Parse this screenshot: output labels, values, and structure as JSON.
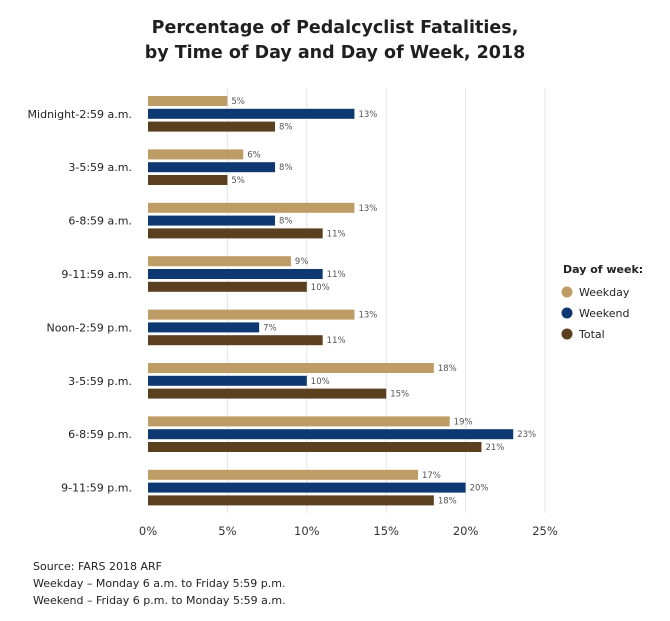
{
  "title_lines": [
    "Percentage of Pedalcyclist Fatalities,",
    "by Time of Day and Day of Week, 2018"
  ],
  "colors": {
    "Weekday": "#bd9c66",
    "Weekend": "#0e3872",
    "Total": "#5b4020",
    "grid": "#e4e4e4"
  },
  "chart_data": {
    "type": "bar",
    "orientation": "horizontal",
    "title": "Percentage of Pedalcyclist Fatalities, by Time of Day and Day of Week, 2018",
    "categories": [
      "Midnight-2:59 a.m.",
      "3-5:59 a.m.",
      "6-8:59 a.m.",
      "9-11:59 a.m.",
      "Noon-2:59 p.m.",
      "3-5:59 p.m.",
      "6-8:59 p.m.",
      "9-11:59 p.m."
    ],
    "series": [
      {
        "name": "Weekday",
        "values": [
          5,
          6,
          13,
          9,
          13,
          18,
          19,
          17
        ]
      },
      {
        "name": "Weekend",
        "values": [
          13,
          8,
          8,
          11,
          7,
          10,
          23,
          20
        ]
      },
      {
        "name": "Total",
        "values": [
          8,
          5,
          11,
          10,
          11,
          15,
          21,
          18
        ]
      }
    ],
    "xlim": [
      0,
      25
    ],
    "xticks": [
      0,
      5,
      10,
      15,
      20,
      25
    ],
    "tick_suffix": "%",
    "value_suffix": "%",
    "legend_title": "Day of week:",
    "legend_position": "right",
    "grid": true
  },
  "source_lines": [
    "Source: FARS 2018 ARF",
    "Weekday – Monday 6 a.m. to Friday 5:59 p.m.",
    "Weekend – Friday 6 p.m. to Monday 5:59 a.m."
  ]
}
